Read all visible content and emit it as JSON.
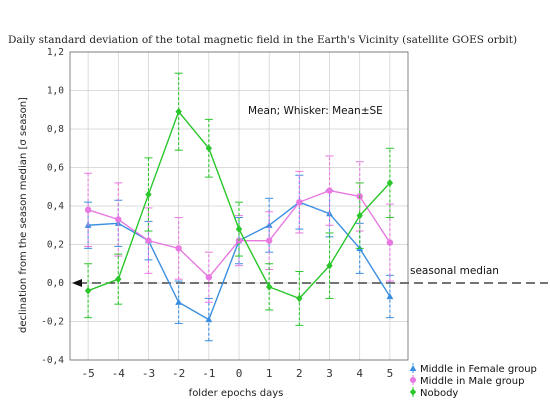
{
  "chart_data": {
    "type": "line",
    "title": "Daily standard deviation of the total magnetic field in the Earth's Vicinity (satellite GOES orbit)",
    "xlabel": "folder epochs days",
    "ylabel": "declination from the season median [σ season]",
    "x": [
      -5,
      -4,
      -3,
      -2,
      -1,
      0,
      1,
      2,
      3,
      4,
      5
    ],
    "xticks": [
      "-5",
      "-4",
      "-3",
      "-2",
      "-1",
      "0",
      "1",
      "2",
      "3",
      "4",
      "5"
    ],
    "ylim": [
      -0.4,
      1.2
    ],
    "yticks": [
      "-0,4",
      "-0,2",
      "0,0",
      "0,2",
      "0,4",
      "0,6",
      "0,8",
      "1,0",
      "1,2"
    ],
    "ytick_values": [
      -0.4,
      -0.2,
      0.0,
      0.2,
      0.4,
      0.6,
      0.8,
      1.0,
      1.2
    ],
    "annotation": "Mean; Whisker: Mean±SE",
    "reference_line": {
      "label": "seasonal median",
      "y": 0.0
    },
    "series": [
      {
        "name": "Middle in Female group",
        "color": "#3b8fe0",
        "marker": "triangle",
        "values": [
          0.3,
          0.31,
          0.22,
          -0.1,
          -0.19,
          0.22,
          0.3,
          0.42,
          0.36,
          0.18,
          -0.07
        ],
        "se": [
          0.12,
          0.12,
          0.1,
          0.11,
          0.11,
          0.12,
          0.14,
          0.14,
          0.12,
          0.13,
          0.11
        ]
      },
      {
        "name": "Middle in Male group",
        "color": "#e879e0",
        "marker": "circle",
        "values": [
          0.38,
          0.33,
          0.22,
          0.18,
          0.03,
          0.22,
          0.22,
          0.42,
          0.48,
          0.45,
          0.21
        ],
        "se": [
          0.19,
          0.19,
          0.17,
          0.16,
          0.13,
          0.13,
          0.15,
          0.16,
          0.18,
          0.18,
          0.2
        ]
      },
      {
        "name": "Nobody",
        "color": "#2bc62b",
        "marker": "diamond",
        "values": [
          -0.04,
          0.02,
          0.46,
          0.89,
          0.7,
          0.28,
          -0.02,
          -0.08,
          0.09,
          0.35,
          0.52
        ],
        "se": [
          0.14,
          0.13,
          0.19,
          0.2,
          0.15,
          0.14,
          0.12,
          0.14,
          0.17,
          0.17,
          0.18
        ]
      }
    ]
  }
}
